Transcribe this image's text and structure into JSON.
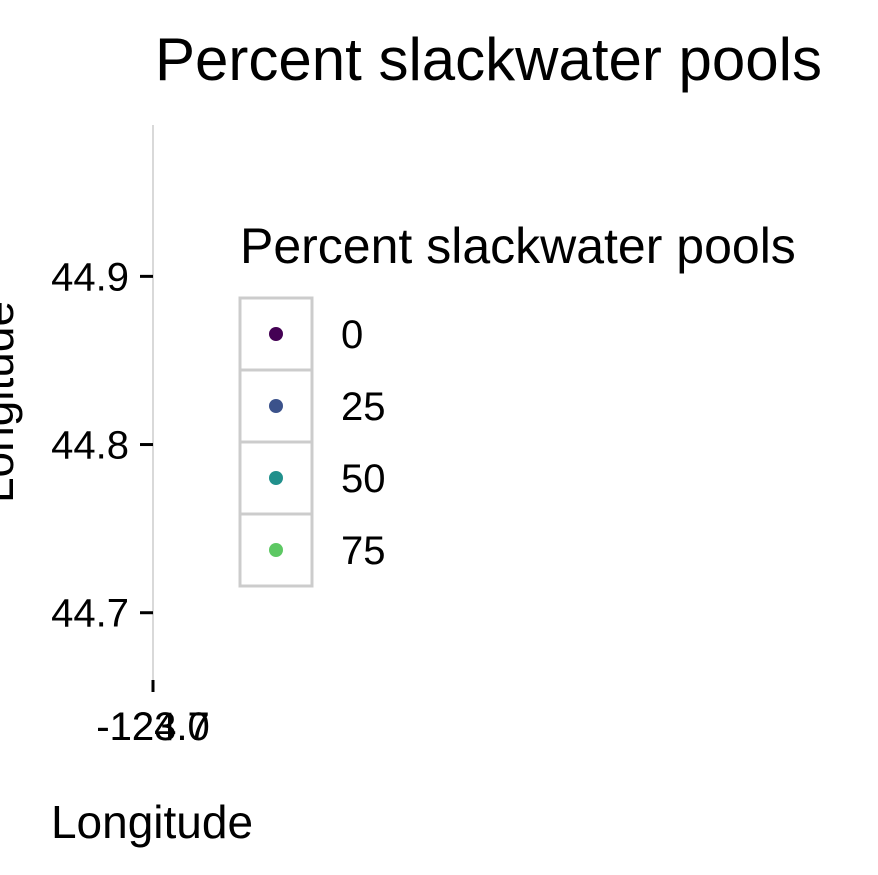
{
  "chart_data": {
    "type": "scatter",
    "title": "Percent slackwater pools",
    "xlabel": "Longitude",
    "ylabel": "Longitude",
    "x_tick_labels": [
      "-124.0",
      "-123.7"
    ],
    "x_tick_value": -124.0,
    "y_ticks": [
      44.7,
      44.8,
      44.9
    ],
    "y_tick_labels": [
      "44.7",
      "44.8",
      "44.9"
    ],
    "ylim": [
      44.66,
      44.99
    ],
    "grid": false,
    "legend": {
      "title": "Percent slackwater pools",
      "placement": "right",
      "entries": [
        {
          "label": "0",
          "color": "#440154"
        },
        {
          "label": "25",
          "color": "#3b528b"
        },
        {
          "label": "50",
          "color": "#21908c"
        },
        {
          "label": "75",
          "color": "#5dc863"
        }
      ]
    },
    "points": []
  }
}
